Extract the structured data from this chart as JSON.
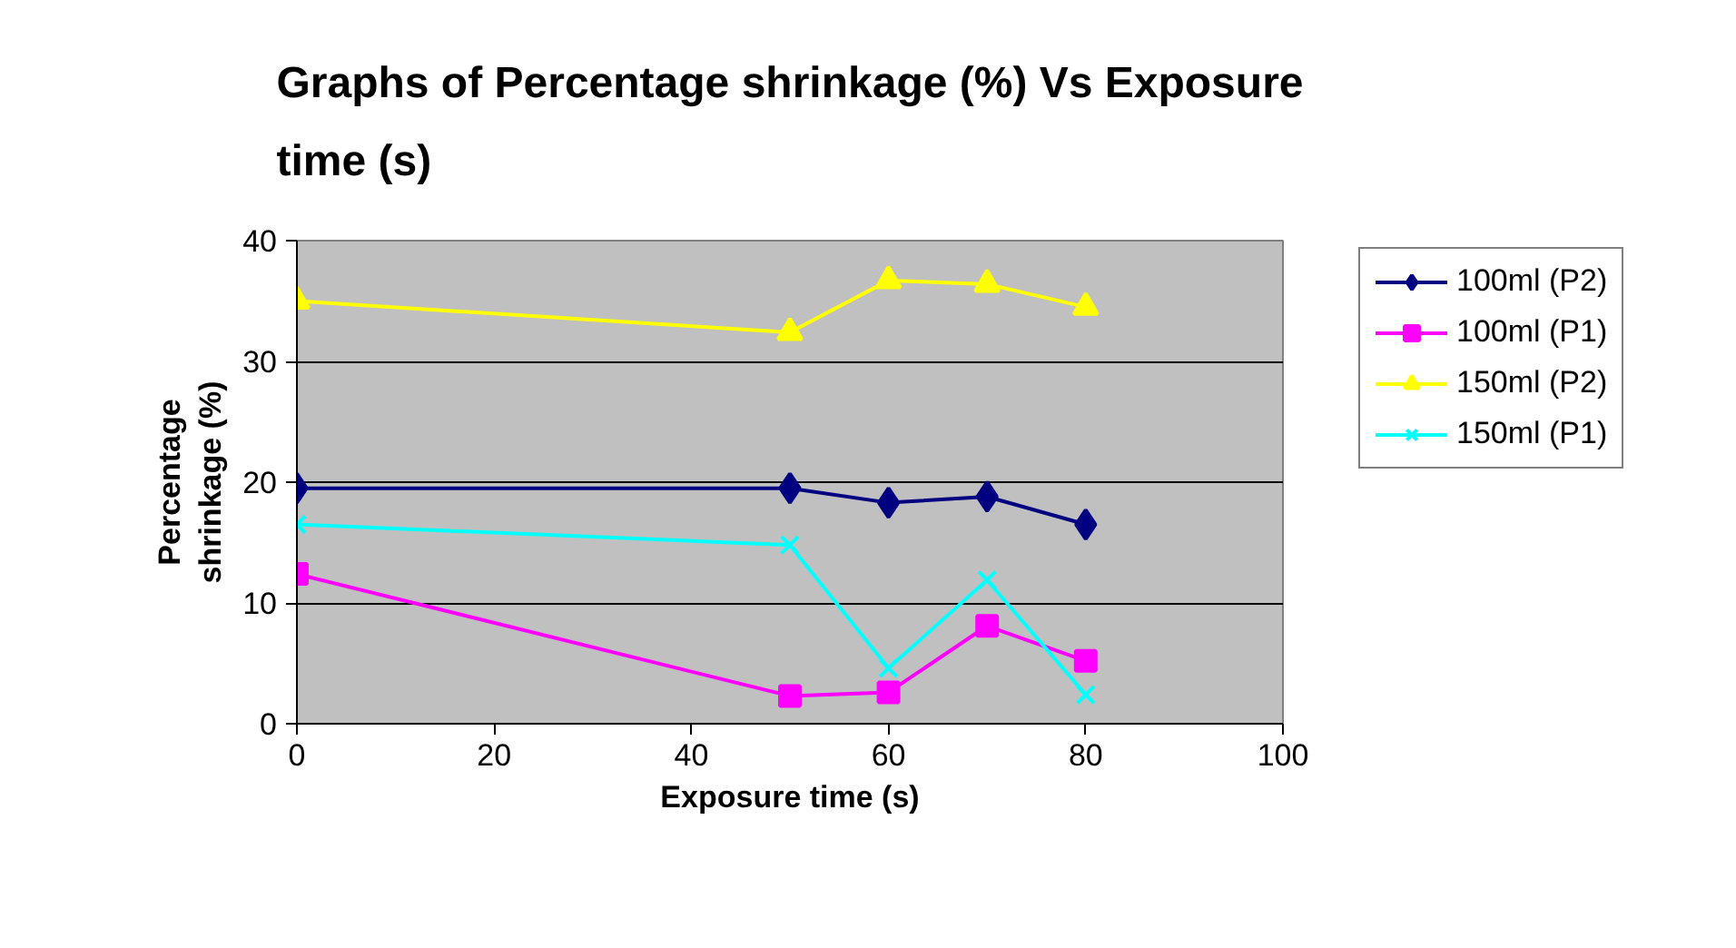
{
  "chart_data": {
    "type": "line",
    "title": "Graphs of Percentage shrinkage (%) Vs Exposure time (s)",
    "xlabel": "Exposure time (s)",
    "ylabel": "Percentage shrinkage (%)",
    "x": [
      0,
      50,
      60,
      70,
      80
    ],
    "series": [
      {
        "name": "100ml (P2)",
        "color": "#000080",
        "marker": "diamond",
        "values": [
          19.5,
          19.5,
          18.3,
          18.8,
          16.5
        ]
      },
      {
        "name": "100ml (P1)",
        "color": "#ff00ff",
        "marker": "square",
        "values": [
          12.4,
          2.3,
          2.6,
          8.1,
          5.2
        ]
      },
      {
        "name": "150ml (P2)",
        "color": "#ffff00",
        "marker": "triangle",
        "values": [
          35.0,
          32.4,
          36.7,
          36.4,
          34.5
        ]
      },
      {
        "name": "150ml (P1)",
        "color": "#00ffff",
        "marker": "cross",
        "values": [
          16.5,
          14.8,
          4.6,
          11.9,
          2.4
        ]
      }
    ],
    "xlim": [
      0,
      100
    ],
    "xticks": [
      0,
      20,
      40,
      60,
      80,
      100
    ],
    "ylim": [
      0,
      40
    ],
    "yticks": [
      0,
      10,
      20,
      30,
      40
    ],
    "grid": "y",
    "legend": "right",
    "line_style": "solid"
  }
}
